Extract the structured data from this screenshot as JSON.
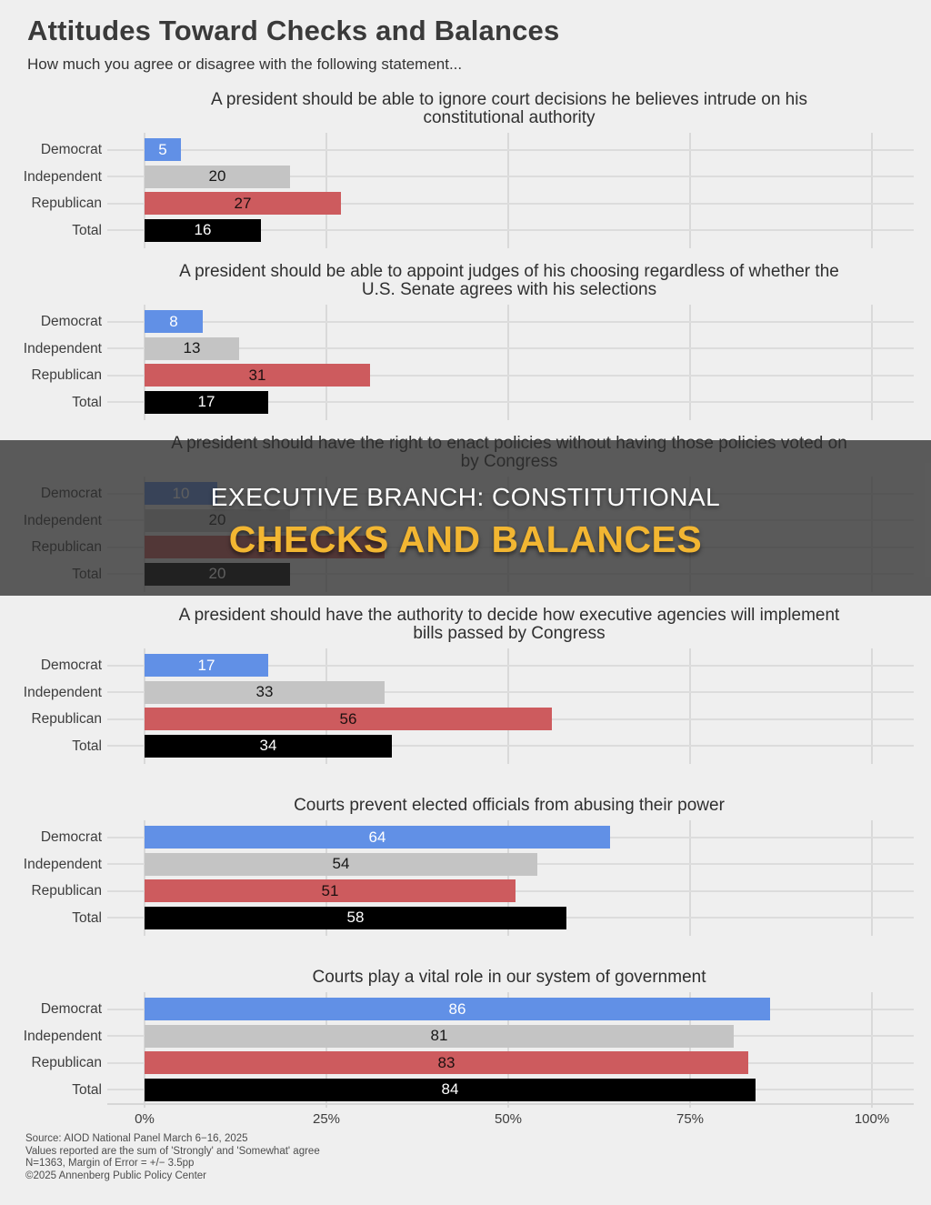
{
  "page": {
    "title": "Attitudes Toward Checks and Balances",
    "subtitle": "How much you agree or disagree with the following statement...",
    "source_lines": [
      "Source: AIOD National Panel March 6−16, 2025",
      "Values reported are the sum of 'Strongly' and 'Somewhat' agree",
      "N=1363, Margin of Error = +/− 3.5pp",
      "©2025 Annenberg Public Policy Center"
    ]
  },
  "overlay": {
    "line1": "EXECUTIVE BRANCH: CONSTITUTIONAL",
    "line2": "CHECKS AND BALANCES",
    "line1_color": "#ffffff",
    "line2_color": "#f2b632",
    "background": "rgba(44,44,44,0.76)"
  },
  "axis": {
    "ticks": [
      "0%",
      "25%",
      "50%",
      "75%",
      "100%"
    ],
    "xlim": [
      0,
      100
    ],
    "grid": true
  },
  "colors": {
    "democrat": "#6190e6",
    "independent": "#c4c4c4",
    "republican": "#cd5b5e",
    "total": "#000000",
    "background": "#efefef",
    "gridline": "#d9d9d9"
  },
  "chart_data": [
    {
      "type": "bar",
      "orientation": "horizontal",
      "title": "A president should be able to ignore court decisions he believes intrude on his constitutional authority",
      "categories": [
        "Democrat",
        "Independent",
        "Republican",
        "Total"
      ],
      "values": [
        5,
        20,
        27,
        16
      ],
      "xlim": [
        0,
        100
      ]
    },
    {
      "type": "bar",
      "orientation": "horizontal",
      "title": "A president should be able to appoint judges of his choosing regardless of whether the U.S. Senate agrees with his selections",
      "categories": [
        "Democrat",
        "Independent",
        "Republican",
        "Total"
      ],
      "values": [
        8,
        13,
        31,
        17
      ],
      "xlim": [
        0,
        100
      ]
    },
    {
      "type": "bar",
      "orientation": "horizontal",
      "title": "A president should have the right to enact policies without having those policies voted on by Congress",
      "categories": [
        "Democrat",
        "Independent",
        "Republican",
        "Total"
      ],
      "values": [
        10,
        20,
        33,
        20
      ],
      "xlim": [
        0,
        100
      ]
    },
    {
      "type": "bar",
      "orientation": "horizontal",
      "title": "A president should have the authority to decide how executive agencies will implement bills passed by Congress",
      "categories": [
        "Democrat",
        "Independent",
        "Republican",
        "Total"
      ],
      "values": [
        17,
        33,
        56,
        34
      ],
      "xlim": [
        0,
        100
      ]
    },
    {
      "type": "bar",
      "orientation": "horizontal",
      "title": "Courts prevent elected officials from abusing their power",
      "categories": [
        "Democrat",
        "Independent",
        "Republican",
        "Total"
      ],
      "values": [
        64,
        54,
        51,
        58
      ],
      "xlim": [
        0,
        100
      ]
    },
    {
      "type": "bar",
      "orientation": "horizontal",
      "title": "Courts play a vital role in our system of government",
      "categories": [
        "Democrat",
        "Independent",
        "Republican",
        "Total"
      ],
      "values": [
        86,
        81,
        83,
        84
      ],
      "xlim": [
        0,
        100
      ]
    }
  ]
}
